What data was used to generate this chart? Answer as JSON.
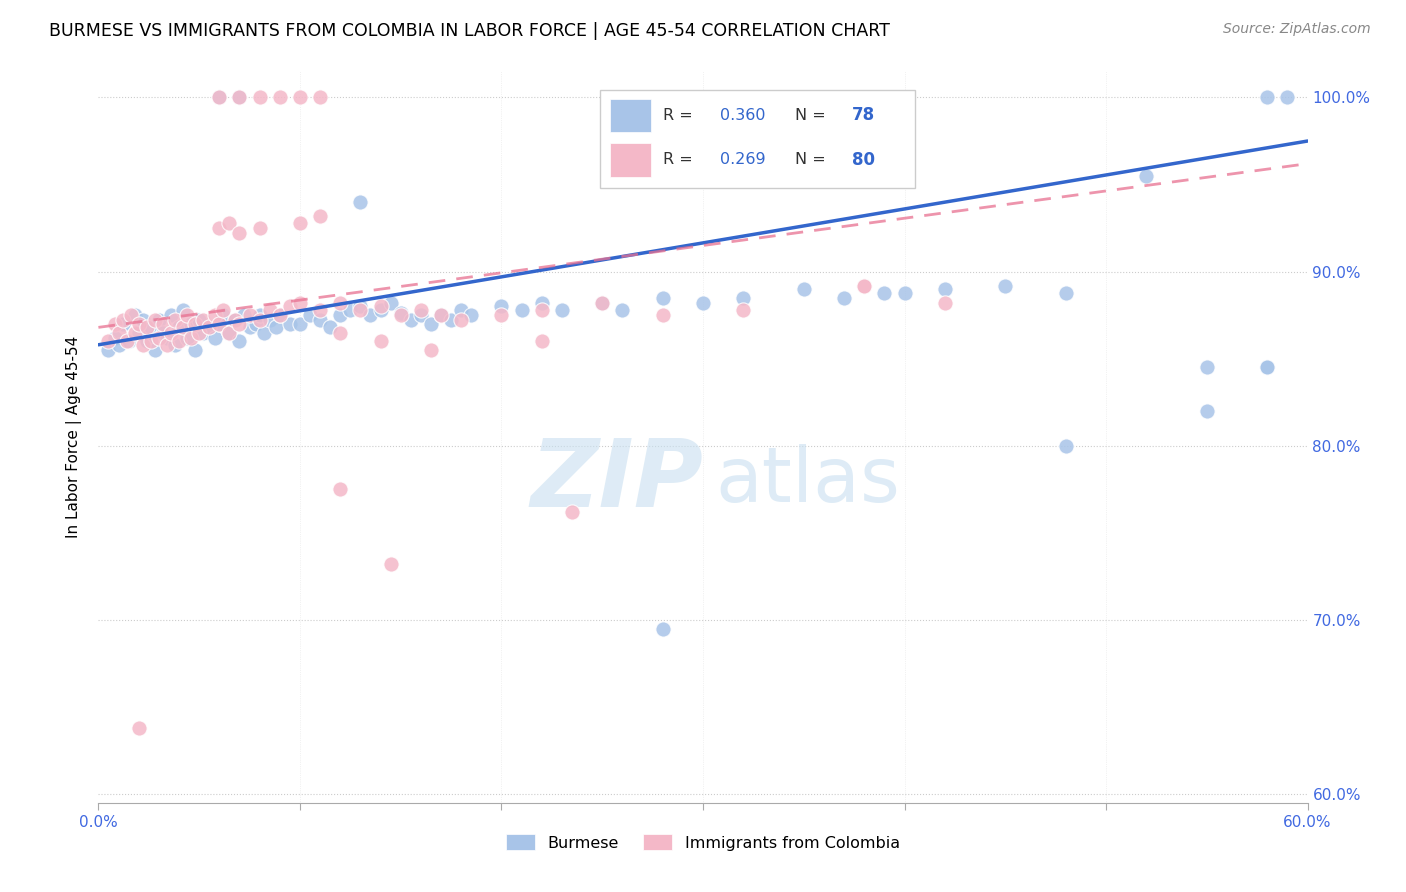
{
  "title": "BURMESE VS IMMIGRANTS FROM COLOMBIA IN LABOR FORCE | AGE 45-54 CORRELATION CHART",
  "source": "Source: ZipAtlas.com",
  "ylabel": "In Labor Force | Age 45-54",
  "x_min": 0.0,
  "x_max": 0.6,
  "y_min": 0.595,
  "y_max": 1.015,
  "R_blue": 0.36,
  "N_blue": 78,
  "R_pink": 0.269,
  "N_pink": 80,
  "legend_label_blue": "Burmese",
  "legend_label_pink": "Immigrants from Colombia",
  "watermark_zip": "ZIP",
  "watermark_atlas": "atlas",
  "blue_color": "#a8c4e8",
  "pink_color": "#f4b8c8",
  "line_blue": "#3366cc",
  "line_pink": "#e87090",
  "blue_scatter": [
    [
      0.005,
      0.855
    ],
    [
      0.008,
      0.862
    ],
    [
      0.01,
      0.858
    ],
    [
      0.012,
      0.87
    ],
    [
      0.015,
      0.86
    ],
    [
      0.018,
      0.875
    ],
    [
      0.02,
      0.865
    ],
    [
      0.022,
      0.872
    ],
    [
      0.024,
      0.86
    ],
    [
      0.026,
      0.868
    ],
    [
      0.028,
      0.855
    ],
    [
      0.03,
      0.872
    ],
    [
      0.032,
      0.865
    ],
    [
      0.034,
      0.862
    ],
    [
      0.036,
      0.875
    ],
    [
      0.038,
      0.858
    ],
    [
      0.04,
      0.868
    ],
    [
      0.042,
      0.878
    ],
    [
      0.044,
      0.862
    ],
    [
      0.046,
      0.87
    ],
    [
      0.048,
      0.855
    ],
    [
      0.05,
      0.872
    ],
    [
      0.052,
      0.865
    ],
    [
      0.055,
      0.868
    ],
    [
      0.058,
      0.862
    ],
    [
      0.06,
      0.87
    ],
    [
      0.062,
      0.875
    ],
    [
      0.065,
      0.865
    ],
    [
      0.068,
      0.872
    ],
    [
      0.07,
      0.86
    ],
    [
      0.072,
      0.875
    ],
    [
      0.075,
      0.868
    ],
    [
      0.078,
      0.87
    ],
    [
      0.08,
      0.875
    ],
    [
      0.082,
      0.865
    ],
    [
      0.085,
      0.872
    ],
    [
      0.088,
      0.868
    ],
    [
      0.09,
      0.875
    ],
    [
      0.095,
      0.87
    ],
    [
      0.1,
      0.87
    ],
    [
      0.105,
      0.875
    ],
    [
      0.11,
      0.872
    ],
    [
      0.115,
      0.868
    ],
    [
      0.12,
      0.875
    ],
    [
      0.125,
      0.878
    ],
    [
      0.13,
      0.88
    ],
    [
      0.135,
      0.875
    ],
    [
      0.14,
      0.878
    ],
    [
      0.145,
      0.882
    ],
    [
      0.15,
      0.876
    ],
    [
      0.155,
      0.872
    ],
    [
      0.16,
      0.875
    ],
    [
      0.165,
      0.87
    ],
    [
      0.17,
      0.875
    ],
    [
      0.175,
      0.872
    ],
    [
      0.18,
      0.878
    ],
    [
      0.185,
      0.875
    ],
    [
      0.2,
      0.88
    ],
    [
      0.21,
      0.878
    ],
    [
      0.22,
      0.882
    ],
    [
      0.23,
      0.878
    ],
    [
      0.25,
      0.882
    ],
    [
      0.26,
      0.878
    ],
    [
      0.28,
      0.885
    ],
    [
      0.3,
      0.882
    ],
    [
      0.32,
      0.885
    ],
    [
      0.35,
      0.89
    ],
    [
      0.37,
      0.885
    ],
    [
      0.39,
      0.888
    ],
    [
      0.4,
      0.888
    ],
    [
      0.42,
      0.89
    ],
    [
      0.45,
      0.892
    ],
    [
      0.48,
      0.888
    ],
    [
      0.06,
      1.0
    ],
    [
      0.07,
      1.0
    ],
    [
      0.58,
      1.0
    ],
    [
      0.59,
      1.0
    ],
    [
      0.13,
      0.94
    ],
    [
      0.52,
      0.955
    ],
    [
      0.55,
      0.845
    ],
    [
      0.58,
      0.845
    ],
    [
      0.48,
      0.8
    ],
    [
      0.55,
      0.82
    ],
    [
      0.58,
      0.845
    ],
    [
      0.28,
      0.695
    ]
  ],
  "pink_scatter": [
    [
      0.005,
      0.86
    ],
    [
      0.008,
      0.87
    ],
    [
      0.01,
      0.865
    ],
    [
      0.012,
      0.872
    ],
    [
      0.014,
      0.86
    ],
    [
      0.016,
      0.875
    ],
    [
      0.018,
      0.865
    ],
    [
      0.02,
      0.87
    ],
    [
      0.022,
      0.858
    ],
    [
      0.024,
      0.868
    ],
    [
      0.026,
      0.86
    ],
    [
      0.028,
      0.872
    ],
    [
      0.03,
      0.862
    ],
    [
      0.032,
      0.87
    ],
    [
      0.034,
      0.858
    ],
    [
      0.036,
      0.865
    ],
    [
      0.038,
      0.872
    ],
    [
      0.04,
      0.86
    ],
    [
      0.042,
      0.868
    ],
    [
      0.044,
      0.875
    ],
    [
      0.046,
      0.862
    ],
    [
      0.048,
      0.87
    ],
    [
      0.05,
      0.865
    ],
    [
      0.052,
      0.872
    ],
    [
      0.055,
      0.868
    ],
    [
      0.058,
      0.875
    ],
    [
      0.06,
      0.87
    ],
    [
      0.062,
      0.878
    ],
    [
      0.065,
      0.865
    ],
    [
      0.068,
      0.872
    ],
    [
      0.07,
      0.87
    ],
    [
      0.075,
      0.875
    ],
    [
      0.08,
      0.872
    ],
    [
      0.085,
      0.878
    ],
    [
      0.09,
      0.875
    ],
    [
      0.095,
      0.88
    ],
    [
      0.1,
      0.882
    ],
    [
      0.11,
      0.878
    ],
    [
      0.12,
      0.882
    ],
    [
      0.13,
      0.878
    ],
    [
      0.14,
      0.88
    ],
    [
      0.15,
      0.875
    ],
    [
      0.16,
      0.878
    ],
    [
      0.17,
      0.875
    ],
    [
      0.18,
      0.872
    ],
    [
      0.2,
      0.875
    ],
    [
      0.22,
      0.878
    ],
    [
      0.25,
      0.882
    ],
    [
      0.28,
      0.875
    ],
    [
      0.32,
      0.878
    ],
    [
      0.38,
      0.892
    ],
    [
      0.42,
      0.882
    ],
    [
      0.06,
      0.925
    ],
    [
      0.065,
      0.928
    ],
    [
      0.07,
      0.922
    ],
    [
      0.08,
      0.925
    ],
    [
      0.1,
      0.928
    ],
    [
      0.11,
      0.932
    ],
    [
      0.06,
      1.0
    ],
    [
      0.07,
      1.0
    ],
    [
      0.08,
      1.0
    ],
    [
      0.09,
      1.0
    ],
    [
      0.1,
      1.0
    ],
    [
      0.11,
      1.0
    ],
    [
      0.12,
      0.865
    ],
    [
      0.14,
      0.86
    ],
    [
      0.165,
      0.855
    ],
    [
      0.22,
      0.86
    ],
    [
      0.12,
      0.775
    ],
    [
      0.145,
      0.732
    ],
    [
      0.235,
      0.762
    ],
    [
      0.38,
      0.892
    ],
    [
      0.02,
      0.638
    ]
  ],
  "blue_line_x0": 0.0,
  "blue_line_y0": 0.858,
  "blue_line_x1": 0.6,
  "blue_line_y1": 0.975,
  "pink_line_x0": 0.0,
  "pink_line_y0": 0.868,
  "pink_line_x1": 0.6,
  "pink_line_y1": 0.962
}
